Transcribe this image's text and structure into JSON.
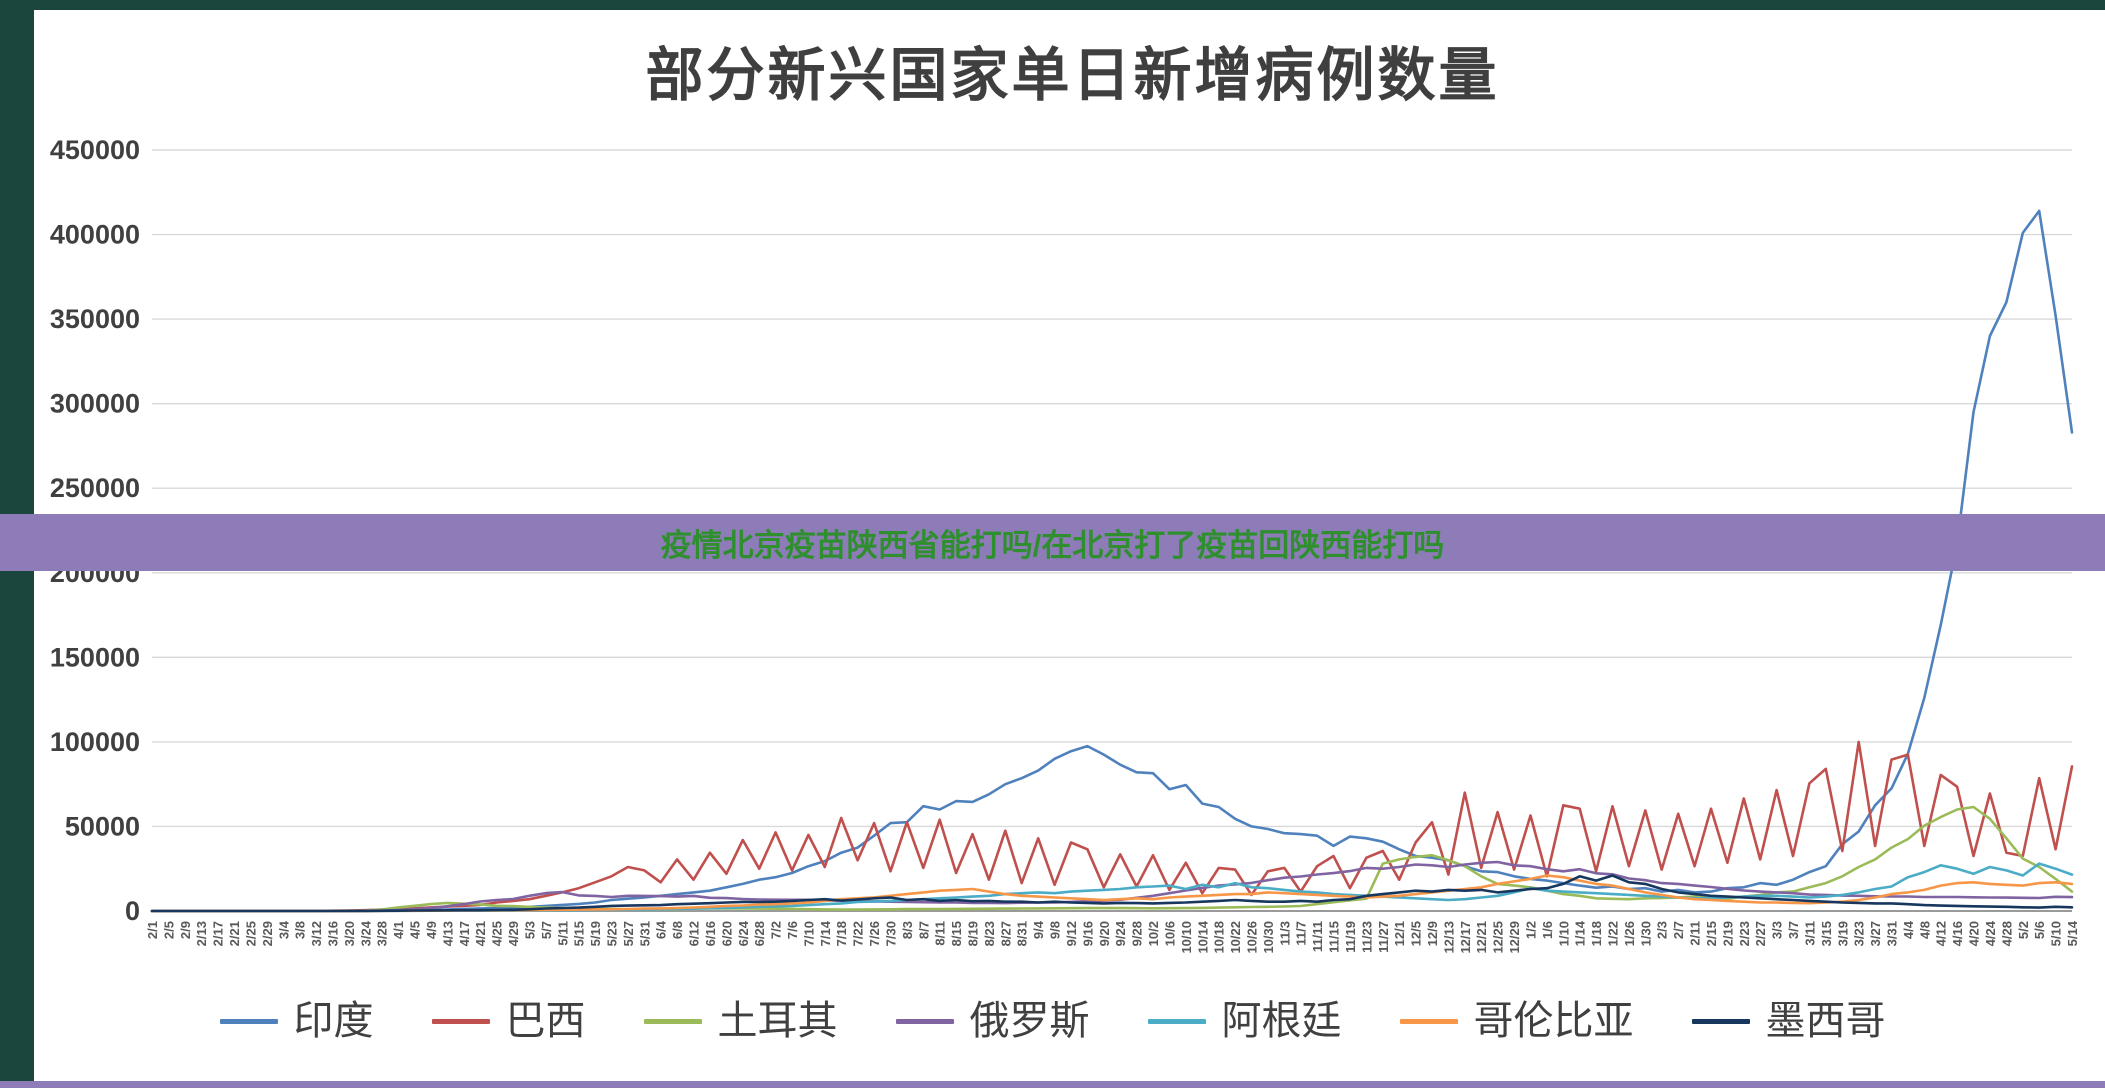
{
  "page": {
    "title": "部分新兴国家单日新增病例数量",
    "banner_text": "疫情北京疫苗陕西省能打吗/在北京打了疫苗回陕西能打吗"
  },
  "colors": {
    "border_teal": "#1b463e",
    "banner_purple": "#8e7cb8",
    "banner_text_green": "#2f8f2f",
    "title_gray": "#3f3f3f",
    "gridline": "#d9d9d9",
    "axis": "#9a9a9a",
    "y_label_gray": "#404040",
    "x_label_gray": "#595959"
  },
  "chart_data": {
    "type": "line",
    "title": "部分新兴国家单日新增病例数量",
    "xlabel": "",
    "ylabel": "",
    "ylim": [
      0,
      450000
    ],
    "ytick_step": 50000,
    "grid": true,
    "legend_position": "bottom",
    "x_labels": [
      "2/1",
      "2/5",
      "2/9",
      "2/13",
      "2/17",
      "2/21",
      "2/25",
      "2/29",
      "3/4",
      "3/8",
      "3/12",
      "3/16",
      "3/20",
      "3/24",
      "3/28",
      "4/1",
      "4/5",
      "4/9",
      "4/13",
      "4/17",
      "4/21",
      "4/25",
      "4/29",
      "5/3",
      "5/7",
      "5/11",
      "5/15",
      "5/19",
      "5/23",
      "5/27",
      "5/31",
      "6/4",
      "6/8",
      "6/12",
      "6/16",
      "6/20",
      "6/24",
      "6/28",
      "7/2",
      "7/6",
      "7/10",
      "7/14",
      "7/18",
      "7/22",
      "7/26",
      "7/30",
      "8/3",
      "8/7",
      "8/11",
      "8/15",
      "8/19",
      "8/23",
      "8/27",
      "8/31",
      "9/4",
      "9/8",
      "9/12",
      "9/16",
      "9/20",
      "9/24",
      "9/28",
      "10/2",
      "10/6",
      "10/10",
      "10/14",
      "10/18",
      "10/22",
      "10/26",
      "10/30",
      "11/3",
      "11/7",
      "11/11",
      "11/15",
      "11/19",
      "11/23",
      "11/27",
      "12/1",
      "12/5",
      "12/9",
      "12/13",
      "12/17",
      "12/21",
      "12/25",
      "12/29",
      "1/2",
      "1/6",
      "1/10",
      "1/14",
      "1/18",
      "1/22",
      "1/26",
      "1/30",
      "2/3",
      "2/7",
      "2/11",
      "2/15",
      "2/19",
      "2/23",
      "2/27",
      "3/3",
      "3/7",
      "3/11",
      "3/15",
      "3/19",
      "3/23",
      "3/27",
      "3/31",
      "4/4",
      "4/8",
      "4/12",
      "4/16",
      "4/20",
      "4/24",
      "4/28",
      "5/2",
      "5/6",
      "5/10",
      "5/14"
    ],
    "series": [
      {
        "key": "india",
        "name": "印度",
        "color": "#4F81BD",
        "values": [
          0,
          0,
          0,
          0,
          0,
          0,
          0,
          0,
          5,
          10,
          20,
          40,
          80,
          120,
          160,
          250,
          420,
          600,
          900,
          1250,
          1550,
          1800,
          1900,
          2400,
          3000,
          3600,
          4200,
          5000,
          6500,
          7300,
          8000,
          9000,
          10000,
          11000,
          12000,
          14000,
          16000,
          18500,
          20000,
          22500,
          26500,
          29500,
          34500,
          37500,
          44500,
          52000,
          52500,
          62000,
          60000,
          65000,
          64500,
          69000,
          75000,
          78500,
          83000,
          90000,
          94500,
          97500,
          92500,
          86500,
          82000,
          81500,
          72000,
          74500,
          63500,
          61500,
          54500,
          50000,
          48500,
          46000,
          45500,
          44500,
          38500,
          44000,
          43000,
          41000,
          36500,
          32500,
          31500,
          30000,
          26500,
          23500,
          23000,
          20500,
          19000,
          18000,
          16500,
          15000,
          13800,
          14500,
          13000,
          13500,
          11500,
          12500,
          11000,
          11500,
          13500,
          14000,
          16500,
          15500,
          18500,
          23000,
          26500,
          39500,
          47000,
          62500,
          72500,
          93000,
          126000,
          169000,
          217000,
          295000,
          340000,
          360000,
          401000,
          414000,
          352000,
          283000
        ]
      },
      {
        "key": "brazil",
        "name": "巴西",
        "color": "#C0504D",
        "values": [
          0,
          0,
          0,
          0,
          0,
          0,
          0,
          0,
          0,
          20,
          50,
          150,
          300,
          500,
          800,
          1100,
          1600,
          2100,
          2600,
          3100,
          3600,
          5000,
          6000,
          7000,
          9000,
          11000,
          13500,
          17000,
          20500,
          26000,
          24000,
          17000,
          30500,
          18500,
          34500,
          22000,
          42000,
          25000,
          46500,
          24000,
          45000,
          26000,
          55000,
          30000,
          52000,
          23500,
          52500,
          25500,
          54000,
          22500,
          45500,
          18500,
          47500,
          16500,
          43000,
          15500,
          40500,
          36500,
          14000,
          33500,
          14500,
          33000,
          12500,
          28500,
          10500,
          25500,
          24500,
          9500,
          23500,
          25500,
          11500,
          26500,
          32500,
          13500,
          31500,
          35500,
          18500,
          40500,
          52500,
          21500,
          70000,
          25500,
          58500,
          24500,
          56500,
          20500,
          62500,
          60500,
          23500,
          62000,
          26500,
          59500,
          24500,
          57500,
          26500,
          60500,
          28500,
          66500,
          30500,
          71500,
          32500,
          75500,
          84000,
          35500,
          100000,
          38500,
          89500,
          92500,
          38500,
          80500,
          73500,
          32500,
          69500,
          34500,
          32500,
          78500,
          36500,
          85500
        ]
      },
      {
        "key": "turkey",
        "name": "土耳其",
        "color": "#9BBB59",
        "values": [
          0,
          0,
          0,
          0,
          0,
          0,
          0,
          0,
          0,
          0,
          0,
          10,
          100,
          300,
          900,
          2100,
          3100,
          4100,
          4800,
          4300,
          3900,
          3100,
          2900,
          2400,
          2000,
          1700,
          1400,
          1200,
          1100,
          1000,
          900,
          900,
          1000,
          1400,
          1600,
          1500,
          1450,
          1400,
          1350,
          1250,
          1050,
          950,
          900,
          900,
          950,
          1000,
          1100,
          1150,
          1200,
          1250,
          1300,
          1350,
          1400,
          1500,
          1550,
          1600,
          1650,
          1700,
          1700,
          1700,
          1650,
          1600,
          1650,
          1700,
          1850,
          2000,
          2200,
          2350,
          2500,
          2650,
          2950,
          4100,
          5200,
          6300,
          7300,
          28000,
          30500,
          32000,
          33000,
          30000,
          26500,
          20500,
          16000,
          15000,
          14000,
          12000,
          10000,
          9000,
          7500,
          7200,
          7000,
          7500,
          7600,
          8000,
          8500,
          7500,
          7200,
          8600,
          9500,
          11000,
          11500,
          14000,
          16500,
          20500,
          26000,
          30500,
          37500,
          42500,
          50500,
          55500,
          60000,
          61500,
          54500,
          43000,
          31000,
          26000,
          19000,
          11500
        ]
      },
      {
        "key": "russia",
        "name": "俄罗斯",
        "color": "#8064A2",
        "values": [
          0,
          0,
          0,
          0,
          0,
          0,
          0,
          0,
          0,
          0,
          10,
          30,
          60,
          150,
          300,
          600,
          1100,
          1700,
          2800,
          4100,
          5600,
          6500,
          7100,
          9000,
          10600,
          11200,
          9200,
          8900,
          8300,
          9000,
          8900,
          8800,
          8500,
          8900,
          7800,
          7600,
          7100,
          6800,
          6700,
          6600,
          6600,
          6200,
          6100,
          5800,
          5700,
          5500,
          5400,
          5200,
          5000,
          5000,
          4800,
          4800,
          4700,
          4900,
          5000,
          5100,
          5400,
          5800,
          6100,
          6600,
          7800,
          9000,
          10500,
          12100,
          13600,
          15100,
          15700,
          16600,
          18200,
          19700,
          20400,
          21600,
          22400,
          23600,
          25500,
          25000,
          26000,
          27500,
          27000,
          26000,
          27500,
          28500,
          29000,
          27000,
          26500,
          24700,
          23500,
          24700,
          22300,
          21700,
          19200,
          18200,
          16500,
          16000,
          15000,
          14200,
          13100,
          12100,
          11500,
          11000,
          10500,
          9700,
          9500,
          9100,
          9000,
          8700,
          8600,
          8600,
          8300,
          8300,
          8300,
          8100,
          8000,
          7900,
          7800,
          7700,
          8400,
          8200
        ]
      },
      {
        "key": "argentina",
        "name": "阿根廷",
        "color": "#4BACC6",
        "values": [
          0,
          0,
          0,
          0,
          0,
          0,
          0,
          0,
          0,
          0,
          10,
          30,
          50,
          80,
          120,
          100,
          120,
          150,
          150,
          160,
          200,
          220,
          250,
          260,
          300,
          350,
          450,
          600,
          700,
          800,
          900,
          1000,
          1200,
          1400,
          1650,
          1850,
          2200,
          2600,
          2800,
          3000,
          3500,
          4000,
          4500,
          5300,
          5550,
          6000,
          6500,
          7000,
          7500,
          8000,
          8500,
          9000,
          10000,
          10550,
          11000,
          10500,
          11500,
          12000,
          12500,
          13000,
          14000,
          14500,
          15000,
          13000,
          15500,
          14000,
          16500,
          14000,
          13500,
          12500,
          11500,
          11000,
          10000,
          9500,
          9000,
          8500,
          8000,
          7500,
          7000,
          6500,
          7000,
          8000,
          9000,
          11000,
          13500,
          12000,
          11500,
          11000,
          10500,
          10000,
          9500,
          9000,
          8500,
          8000,
          7500,
          7500,
          8000,
          8500,
          9000,
          9000,
          8500,
          8000,
          8500,
          9500,
          11000,
          13000,
          14500,
          20000,
          23000,
          27000,
          25000,
          22000,
          26000,
          24000,
          21000,
          28000,
          25000,
          21500
        ]
      },
      {
        "key": "colombia",
        "name": "哥伦比亚",
        "color": "#F79646",
        "values": [
          0,
          0,
          0,
          0,
          0,
          0,
          0,
          0,
          0,
          0,
          0,
          10,
          30,
          60,
          100,
          120,
          160,
          200,
          250,
          300,
          350,
          400,
          500,
          500,
          600,
          700,
          800,
          900,
          1000,
          1200,
          1500,
          1550,
          1800,
          2050,
          2500,
          3000,
          3250,
          3800,
          4050,
          4500,
          5000,
          6000,
          7000,
          7500,
          8050,
          9000,
          10000,
          11000,
          12000,
          12500,
          13000,
          11500,
          10000,
          9000,
          8500,
          8000,
          7500,
          7000,
          6500,
          7000,
          7500,
          7000,
          8000,
          8500,
          9000,
          9500,
          10000,
          10000,
          11000,
          10500,
          10000,
          9500,
          9000,
          8500,
          8000,
          8500,
          9000,
          10000,
          11000,
          12000,
          13000,
          14000,
          16000,
          17500,
          19000,
          21000,
          20000,
          18000,
          16000,
          15000,
          13000,
          11000,
          9500,
          8000,
          7000,
          6500,
          6000,
          5500,
          5000,
          5000,
          4800,
          4600,
          5000,
          5500,
          6500,
          8000,
          10000,
          11000,
          12500,
          15000,
          16500,
          17000,
          16000,
          15500,
          15000,
          16500,
          17000,
          16000
        ]
      },
      {
        "key": "mexico",
        "name": "墨西哥",
        "color": "#17375E",
        "values": [
          0,
          0,
          0,
          0,
          0,
          0,
          0,
          0,
          0,
          0,
          0,
          10,
          30,
          60,
          100,
          200,
          300,
          350,
          400,
          450,
          500,
          600,
          700,
          1000,
          1500,
          1800,
          2000,
          2500,
          3000,
          3200,
          3400,
          3500,
          4000,
          4300,
          4600,
          5000,
          5400,
          5300,
          5500,
          6000,
          6500,
          7000,
          6200,
          6800,
          7500,
          8000,
          6500,
          7000,
          6000,
          6500,
          5800,
          6000,
          5500,
          5500,
          5000,
          5500,
          5000,
          4800,
          4500,
          4800,
          4700,
          4500,
          4800,
          5000,
          5500,
          6000,
          6500,
          6000,
          5500,
          5500,
          6000,
          5500,
          6500,
          7000,
          9000,
          10000,
          11000,
          12000,
          11500,
          12500,
          12000,
          12500,
          11000,
          12000,
          13000,
          13500,
          16000,
          20500,
          18000,
          21000,
          17000,
          16000,
          13000,
          11000,
          10000,
          9000,
          8500,
          8000,
          7500,
          7000,
          6500,
          6000,
          5500,
          5000,
          4800,
          4500,
          4500,
          4000,
          3500,
          3200,
          3000,
          2800,
          2600,
          2500,
          2200,
          2000,
          2500,
          2200
        ]
      }
    ]
  }
}
